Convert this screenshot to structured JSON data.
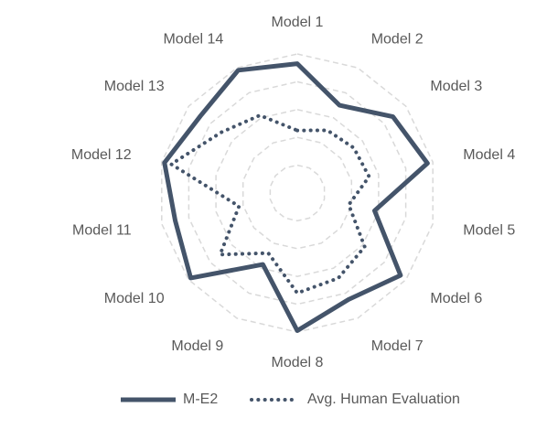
{
  "chart_data": {
    "type": "radar",
    "categories": [
      "Model 1",
      "Model 2",
      "Model 3",
      "Model 4",
      "Model 5",
      "Model 6",
      "Model 7",
      "Model 8",
      "Model 9",
      "Model 10",
      "Model 11",
      "Model 12",
      "Model 13",
      "Model 14"
    ],
    "series": [
      {
        "name": "M-E2",
        "values": [
          0.93,
          0.7,
          0.88,
          0.96,
          0.57,
          0.95,
          0.85,
          0.99,
          0.57,
          0.98,
          0.9,
          0.98,
          0.89,
          0.98
        ],
        "color": "#44546a",
        "style": "solid"
      },
      {
        "name": "Avg. Human Evaluation",
        "values": [
          0.45,
          0.5,
          0.52,
          0.53,
          0.38,
          0.62,
          0.68,
          0.72,
          0.48,
          0.71,
          0.43,
          0.93,
          0.7,
          0.62
        ],
        "color": "#44546a",
        "style": "dotted"
      }
    ],
    "rlim": [
      0,
      1
    ],
    "gridlines": 5,
    "legend_position": "bottom"
  }
}
